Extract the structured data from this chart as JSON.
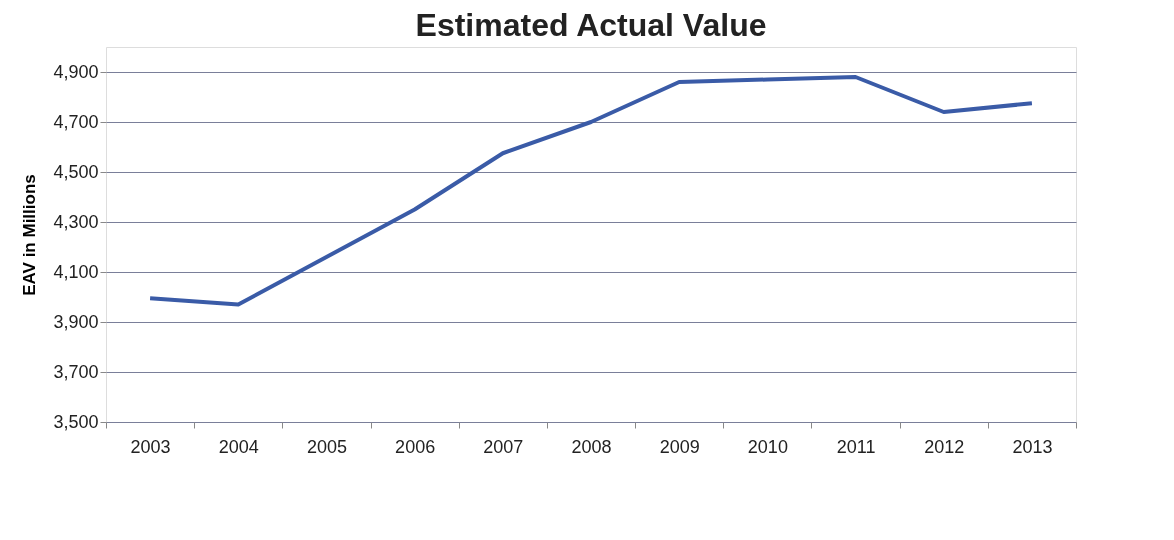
{
  "chart_data": {
    "type": "line",
    "title": "Estimated Actual Value",
    "ylabel": "EAV in Millions",
    "categories": [
      "2003",
      "2004",
      "2005",
      "2006",
      "2007",
      "2008",
      "2009",
      "2010",
      "2011",
      "2012",
      "2013"
    ],
    "series": [
      {
        "color": "#3a5ba7",
        "values": [
          3995,
          3970,
          4160,
          4350,
          4575,
          4700,
          4860,
          4870,
          4880,
          4740,
          4775
        ]
      }
    ],
    "ylim": [
      3500,
      5000
    ],
    "yticks": [
      {
        "value": 3500,
        "label": "3,500"
      },
      {
        "value": 3700,
        "label": "3,700"
      },
      {
        "value": 3900,
        "label": "3,900"
      },
      {
        "value": 4100,
        "label": "4,100"
      },
      {
        "value": 4300,
        "label": "4,300"
      },
      {
        "value": 4500,
        "label": "4,500"
      },
      {
        "value": 4700,
        "label": "4,700"
      },
      {
        "value": 4900,
        "label": "4,900"
      }
    ],
    "grid": "y",
    "legend": false,
    "marker": "none",
    "line_style": "solid"
  }
}
